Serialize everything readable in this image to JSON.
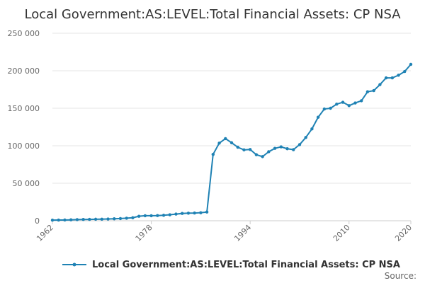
{
  "colors": {
    "series": "#1f82b4",
    "grid": "#e6e6e6",
    "text": "#333333"
  },
  "chart_data": {
    "type": "line",
    "title": "Local Government:AS:LEVEL:Total Financial Assets: CP NSA",
    "xlabel": "",
    "ylabel": "",
    "xlim": [
      1962,
      2020
    ],
    "ylim": [
      0,
      250000
    ],
    "y_ticks": [
      0,
      50000,
      100000,
      150000,
      200000,
      250000
    ],
    "y_tick_labels": [
      "0",
      "50 000",
      "100 000",
      "150 000",
      "200 000",
      "250 000"
    ],
    "x_ticks": [
      1962,
      1978,
      1994,
      2010,
      2020
    ],
    "x_tick_labels": [
      "1962",
      "1978",
      "1994",
      "2010",
      "2020"
    ],
    "grid": true,
    "legend_position": "bottom",
    "source_label": "Source:",
    "series": [
      {
        "name": "Local Government:AS:LEVEL:Total Financial Assets: CP NSA",
        "x": [
          1962,
          1963,
          1964,
          1965,
          1966,
          1967,
          1968,
          1969,
          1970,
          1971,
          1972,
          1973,
          1974,
          1975,
          1976,
          1977,
          1978,
          1979,
          1980,
          1981,
          1982,
          1983,
          1984,
          1985,
          1986,
          1987,
          1988,
          1989,
          1990,
          1991,
          1992,
          1993,
          1994,
          1995,
          1996,
          1997,
          1998,
          1999,
          2000,
          2001,
          2002,
          2003,
          2004,
          2005,
          2006,
          2007,
          2008,
          2009,
          2010,
          2011,
          2012,
          2013,
          2014,
          2015,
          2016,
          2017,
          2018,
          2019,
          2020
        ],
        "values": [
          800,
          900,
          1000,
          1200,
          1500,
          1700,
          1800,
          2000,
          2100,
          2300,
          2600,
          2900,
          3400,
          4000,
          6000,
          6700,
          6700,
          6900,
          7300,
          8000,
          8900,
          9700,
          10100,
          10300,
          10700,
          11600,
          88500,
          103500,
          109500,
          104000,
          98000,
          94500,
          95000,
          88000,
          85500,
          92000,
          96500,
          98500,
          96000,
          94800,
          101500,
          111000,
          122500,
          138000,
          149000,
          150000,
          155500,
          158000,
          153500,
          157000,
          160000,
          172000,
          173500,
          181500,
          190500,
          190500,
          194000,
          199000,
          208500
        ]
      }
    ]
  }
}
